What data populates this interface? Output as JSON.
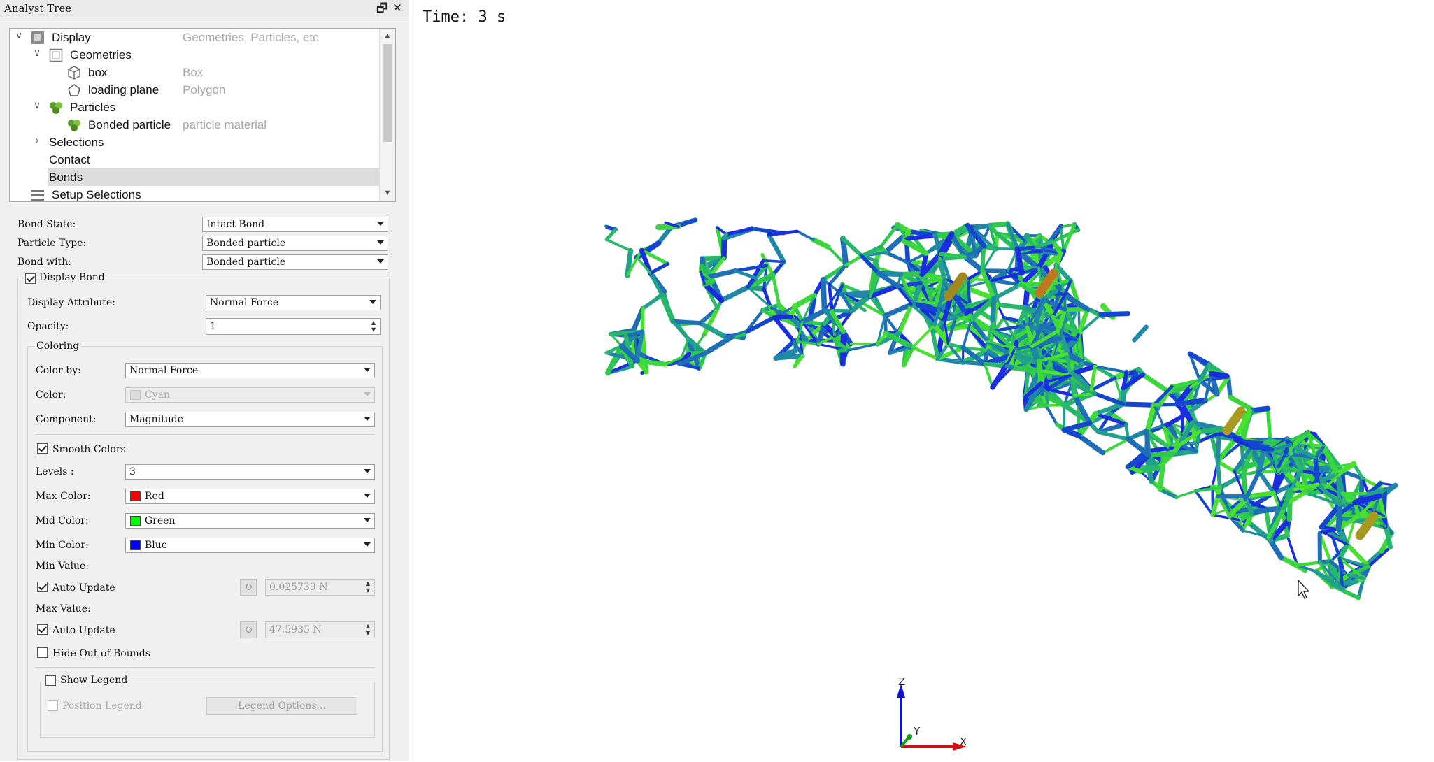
{
  "panel": {
    "title": "Analyst Tree",
    "restore_icon": "restore-icon",
    "close_icon": "close-icon"
  },
  "tree": {
    "items": [
      {
        "label": "Display",
        "desc": "Geometries, Particles, etc",
        "icon": "display-icon",
        "expanded": true
      },
      {
        "label": "Geometries",
        "desc": "",
        "icon": "geometries-icon",
        "expanded": true
      },
      {
        "label": "box",
        "desc": "Box",
        "icon": "box-icon"
      },
      {
        "label": "loading plane",
        "desc": "Polygon",
        "icon": "polygon-icon"
      },
      {
        "label": "Particles",
        "desc": "",
        "icon": "particles-icon",
        "expanded": true
      },
      {
        "label": "Bonded particle",
        "desc": "particle material",
        "icon": "particle-icon"
      },
      {
        "label": "Selections",
        "desc": "",
        "expanded": false
      },
      {
        "label": "Contact",
        "desc": ""
      },
      {
        "label": "Bonds",
        "desc": "",
        "selected": true
      },
      {
        "label": "Setup Selections",
        "desc": "",
        "icon": "setup-selections-icon"
      }
    ]
  },
  "props": {
    "bond_state_label": "Bond State:",
    "bond_state_value": "Intact Bond",
    "particle_type_label": "Particle Type:",
    "particle_type_value": "Bonded particle",
    "bond_with_label": "Bond with:",
    "bond_with_value": "Bonded particle",
    "display_bond_label": "Display Bond",
    "display_bond_checked": true,
    "display_attribute_label": "Display Attribute:",
    "display_attribute_value": "Normal Force",
    "opacity_label": "Opacity:",
    "opacity_value": "1",
    "coloring_title": "Coloring",
    "color_by_label": "Color by:",
    "color_by_value": "Normal Force",
    "color_label": "Color:",
    "color_value": "Cyan",
    "component_label": "Component:",
    "component_value": "Magnitude",
    "smooth_colors_label": "Smooth Colors",
    "smooth_colors_checked": true,
    "levels_label": "Levels :",
    "levels_value": "3",
    "max_color_label": "Max Color:",
    "max_color_value": "Red",
    "max_color_hex": "#ff0000",
    "mid_color_label": "Mid Color:",
    "mid_color_value": "Green",
    "mid_color_hex": "#00ff00",
    "min_color_label": "Min Color:",
    "min_color_value": "Blue",
    "min_color_hex": "#0000ff",
    "min_value_label": "Min Value:",
    "min_auto_update_label": "Auto Update",
    "min_value": "0.025739 N",
    "max_value_label": "Max Value:",
    "max_auto_update_label": "Auto Update",
    "max_value": "47.5935 N",
    "hide_out_of_bounds_label": "Hide Out of Bounds",
    "show_legend_label": "Show Legend",
    "position_legend_label": "Position Legend",
    "legend_options_label": "Legend Options..."
  },
  "viewport": {
    "time_label": "Time: 3 s",
    "axis_x": "X",
    "axis_y": "Y",
    "axis_z": "Z"
  }
}
